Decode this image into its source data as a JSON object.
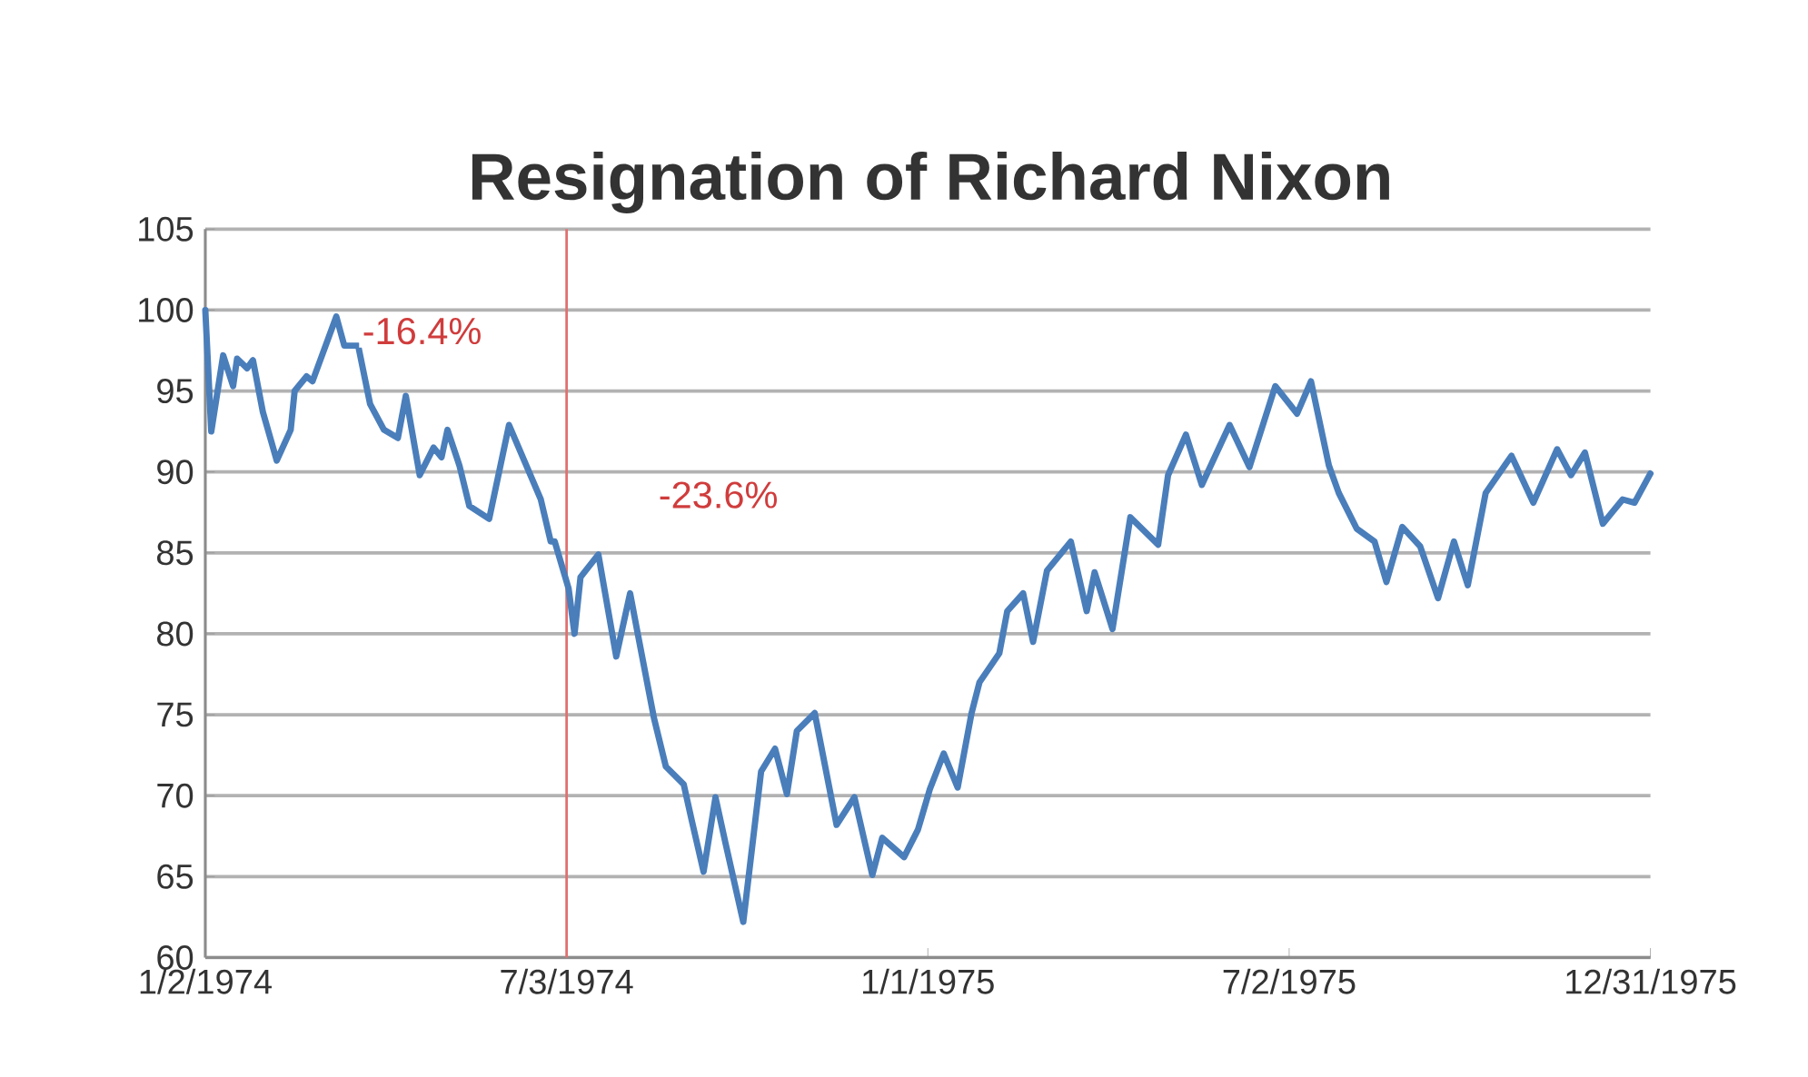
{
  "chart_data": {
    "type": "line",
    "title": "Resignation of Richard Nixon",
    "x": [
      "1974-01-02",
      "1974-01-05",
      "1974-01-11",
      "1974-01-16",
      "1974-01-18",
      "1974-01-23",
      "1974-01-26",
      "1974-01-31",
      "1974-02-07",
      "1974-02-14",
      "1974-02-16",
      "1974-02-22",
      "1974-02-25",
      "1974-03-09",
      "1974-03-13",
      "1974-03-20",
      "1974-03-26",
      "1974-04-02",
      "1974-04-09",
      "1974-04-13",
      "1974-04-20",
      "1974-04-27",
      "1974-05-01",
      "1974-05-04",
      "1974-05-10",
      "1974-05-15",
      "1974-05-25",
      "1974-06-04",
      "1974-06-20",
      "1974-06-25",
      "1974-06-27",
      "1974-07-04",
      "1974-07-07",
      "1974-07-10",
      "1974-07-19",
      "1974-07-28",
      "1974-08-04",
      "1974-08-08",
      "1974-08-16",
      "1974-08-22",
      "1974-08-31",
      "1974-09-04",
      "1974-09-10",
      "1974-09-16",
      "1974-09-21",
      "1974-09-30",
      "1974-10-09",
      "1974-10-16",
      "1974-10-22",
      "1974-10-27",
      "1974-11-05",
      "1974-11-16",
      "1974-11-25",
      "1974-12-04",
      "1974-12-09",
      "1974-12-20",
      "1974-12-27",
      "1975-01-02",
      "1975-01-09",
      "1975-01-16",
      "1975-01-23",
      "1975-01-27",
      "1975-02-06",
      "1975-02-10",
      "1975-02-18",
      "1975-02-23",
      "1975-03-02",
      "1975-03-14",
      "1975-03-22",
      "1975-03-26",
      "1975-04-04",
      "1975-04-13",
      "1975-04-27",
      "1975-05-02",
      "1975-05-11",
      "1975-05-19",
      "1975-06-02",
      "1975-06-12",
      "1975-06-25",
      "1975-07-06",
      "1975-07-13",
      "1975-07-22",
      "1975-07-27",
      "1975-08-05",
      "1975-08-14",
      "1975-08-20",
      "1975-08-28",
      "1975-09-06",
      "1975-09-15",
      "1975-09-23",
      "1975-09-30",
      "1975-10-09",
      "1975-10-22",
      "1975-11-02",
      "1975-11-14",
      "1975-11-21",
      "1975-11-28",
      "1975-12-07",
      "1975-12-17",
      "1975-12-23",
      "1975-12-31"
    ],
    "series": [
      {
        "color": "#4a7ebb",
        "values": [
          100,
          92.5,
          97.2,
          95.3,
          97,
          96.4,
          96.9,
          93.7,
          90.7,
          92.6,
          95,
          95.9,
          95.6,
          99.6,
          97.8,
          97.8,
          94.2,
          92.6,
          92.1,
          94.7,
          89.8,
          91.5,
          90.9,
          92.6,
          90.4,
          87.9,
          87.1,
          92.9,
          88.3,
          85.7,
          85.7,
          82.8,
          80,
          83.5,
          84.9,
          78.6,
          82.5,
          79.9,
          74.8,
          71.8,
          70.7,
          68.5,
          65.3,
          69.9,
          67.1,
          62.2,
          71.5,
          72.9,
          70.1,
          74,
          75.1,
          68.2,
          69.9,
          65.1,
          67.4,
          66.2,
          67.9,
          70.4,
          72.6,
          70.5,
          75.1,
          77,
          78.8,
          81.4,
          82.5,
          79.5,
          83.9,
          85.7,
          81.4,
          83.8,
          80.3,
          87.2,
          85.5,
          89.8,
          92.3,
          89.2,
          92.9,
          90.3,
          95.3,
          93.6,
          95.6,
          90.4,
          88.7,
          86.5,
          85.7,
          83.2,
          86.6,
          85.4,
          82.2,
          85.7,
          83,
          88.7,
          91,
          88.1,
          91.4,
          89.8,
          91.2,
          86.8,
          88.3,
          88.1,
          89.9
        ]
      }
    ],
    "xlim": [
      "1974-01-02",
      "1975-12-31"
    ],
    "xticks": [
      {
        "value": "1974-01-02",
        "label": "1/2/1974"
      },
      {
        "value": "1974-07-03",
        "label": "7/3/1974"
      },
      {
        "value": "1975-01-01",
        "label": "1/1/1975"
      },
      {
        "value": "1975-07-02",
        "label": "7/2/1975"
      },
      {
        "value": "1975-12-31",
        "label": "12/31/1975"
      }
    ],
    "ylim": [
      60,
      105
    ],
    "yticks": [
      60,
      65,
      70,
      75,
      80,
      85,
      90,
      95,
      100,
      105
    ],
    "grid": "y",
    "marker": "none",
    "line_style": "solid",
    "ref_lines": [
      {
        "axis": "x",
        "value": "1974-07-03",
        "color": "#e07070",
        "line_style": "solid"
      }
    ],
    "annotations": [
      "-16.4%",
      "-23.6%"
    ]
  }
}
